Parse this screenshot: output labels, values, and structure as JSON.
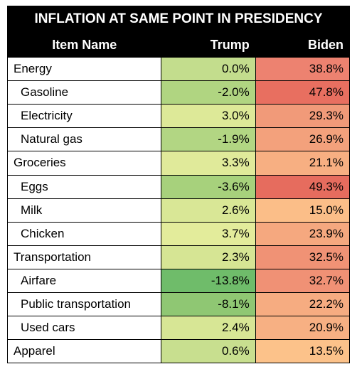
{
  "title": "INFLATION AT SAME POINT IN PRESIDENCY",
  "columns": {
    "item": "Item Name",
    "trump": "Trump",
    "biden": "Biden"
  },
  "border_color": "#000000",
  "header_bg": "#000000",
  "header_fg": "#ffffff",
  "title_fontsize": 19,
  "header_fontsize": 18,
  "cell_fontsize": 17,
  "rows": [
    {
      "label": "Energy",
      "indent": false,
      "trump": "0.0%",
      "trump_bg": "#c3dd8d",
      "biden": "38.8%",
      "biden_bg": "#ed8270"
    },
    {
      "label": "Gasoline",
      "indent": true,
      "trump": "-2.0%",
      "trump_bg": "#b0d581",
      "biden": "47.8%",
      "biden_bg": "#e86f60"
    },
    {
      "label": "Electricity",
      "indent": true,
      "trump": "3.0%",
      "trump_bg": "#dde998",
      "biden": "29.3%",
      "biden_bg": "#f19a79"
    },
    {
      "label": "Natural gas",
      "indent": true,
      "trump": "-1.9%",
      "trump_bg": "#b2d683",
      "biden": "26.9%",
      "biden_bg": "#f3a17c"
    },
    {
      "label": "Groceries",
      "indent": false,
      "trump": "3.3%",
      "trump_bg": "#e0ea9a",
      "biden": "21.1%",
      "biden_bg": "#f7af82"
    },
    {
      "label": "Eggs",
      "indent": true,
      "trump": "-3.6%",
      "trump_bg": "#a7d17c",
      "biden": "49.3%",
      "biden_bg": "#e66c5e"
    },
    {
      "label": "Milk",
      "indent": true,
      "trump": "2.6%",
      "trump_bg": "#d9e796",
      "biden": "15.0%",
      "biden_bg": "#fbbe88"
    },
    {
      "label": "Chicken",
      "indent": true,
      "trump": "3.7%",
      "trump_bg": "#e3ec9b",
      "biden": "23.9%",
      "biden_bg": "#f5a87f"
    },
    {
      "label": "Transportation",
      "indent": false,
      "trump": "2.3%",
      "trump_bg": "#d6e594",
      "biden": "32.5%",
      "biden_bg": "#f09275"
    },
    {
      "label": "Airfare",
      "indent": true,
      "trump": "-13.8%",
      "trump_bg": "#6fbc6a",
      "biden": "32.7%",
      "biden_bg": "#f09175"
    },
    {
      "label": "Public transportation",
      "indent": true,
      "trump": "-8.1%",
      "trump_bg": "#8fc773",
      "biden": "22.2%",
      "biden_bg": "#f6ac81"
    },
    {
      "label": "Used cars",
      "indent": true,
      "trump": "2.4%",
      "trump_bg": "#d7e695",
      "biden": "20.9%",
      "biden_bg": "#f7b083"
    },
    {
      "label": "Apparel",
      "indent": false,
      "trump": "0.6%",
      "trump_bg": "#c8df8f",
      "biden": "13.5%",
      "biden_bg": "#fcc28a"
    }
  ]
}
